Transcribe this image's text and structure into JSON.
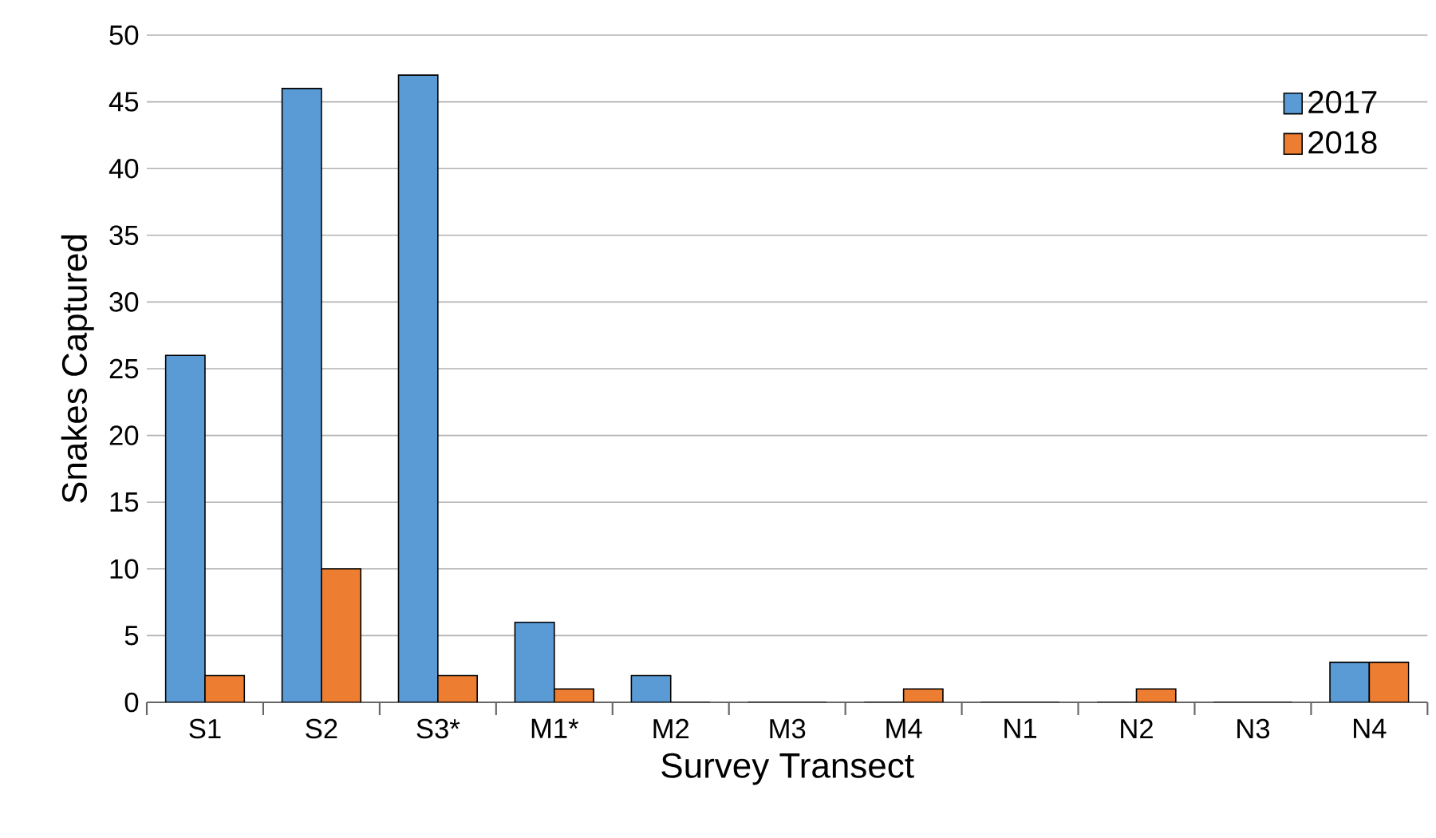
{
  "chart_data": {
    "type": "bar",
    "xlabel": "Survey Transect",
    "ylabel": "Snakes Captured",
    "categories": [
      "S1",
      "S2",
      "S3*",
      "M1*",
      "M2",
      "M3",
      "M4",
      "N1",
      "N2",
      "N3",
      "N4"
    ],
    "series": [
      {
        "name": "2017",
        "color": "#5b9bd5",
        "values": [
          26,
          46,
          47,
          6,
          2,
          0,
          0,
          0,
          0,
          0,
          3
        ]
      },
      {
        "name": "2018",
        "color": "#ed7d31",
        "values": [
          2,
          10,
          2,
          1,
          0,
          0,
          1,
          0,
          1,
          0,
          3
        ]
      }
    ],
    "ylim": [
      0,
      50
    ],
    "yticks": [
      0,
      5,
      10,
      15,
      20,
      25,
      30,
      35,
      40,
      45,
      50
    ],
    "grid": "y",
    "legend": "top right"
  }
}
